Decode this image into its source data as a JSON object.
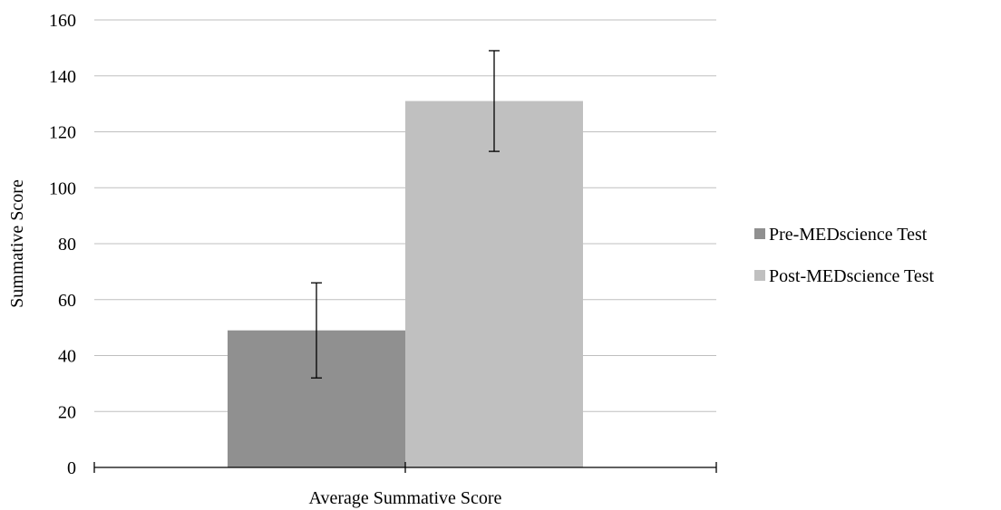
{
  "chart_data": {
    "type": "bar",
    "categories": [
      "Average Summative Score"
    ],
    "series": [
      {
        "name": "Pre-MEDscience Test",
        "values": [
          49
        ],
        "error": [
          17
        ],
        "color": "#909090"
      },
      {
        "name": "Post-MEDscience Test",
        "values": [
          131
        ],
        "error": [
          18
        ],
        "color": "#c0c0c0"
      }
    ],
    "title": "",
    "xlabel": "Average Summative Score",
    "ylabel": "Summative Score",
    "ylim": [
      0,
      160
    ],
    "yticks": [
      0,
      20,
      40,
      60,
      80,
      100,
      120,
      140,
      160
    ],
    "grid": true,
    "legend_position": "right",
    "gridline_color": "#bfbfbf",
    "axis_color": "#000000"
  }
}
